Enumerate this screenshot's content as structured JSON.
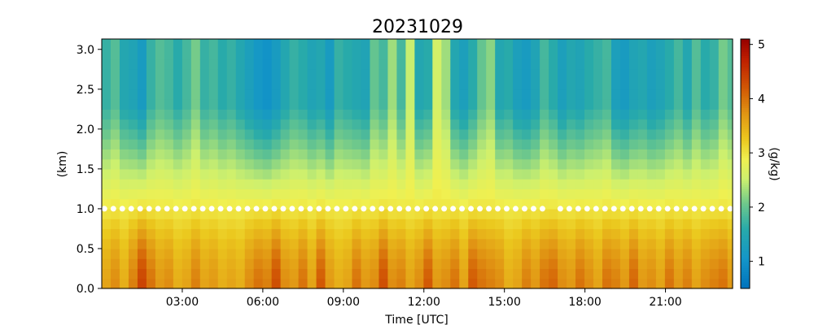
{
  "chart_data": {
    "type": "heatmap",
    "title": "20231029",
    "xlabel": "Time [UTC]",
    "ylabel": "(km)",
    "colorbar_label": "(g/kg)",
    "xlim_hours": [
      0.0,
      23.5
    ],
    "ylim_km": [
      0.0,
      3.13
    ],
    "x_ticks": [
      {
        "hours": 3,
        "label": "03:00"
      },
      {
        "hours": 6,
        "label": "06:00"
      },
      {
        "hours": 9,
        "label": "09:00"
      },
      {
        "hours": 12,
        "label": "12:00"
      },
      {
        "hours": 15,
        "label": "15:00"
      },
      {
        "hours": 18,
        "label": "18:00"
      },
      {
        "hours": 21,
        "label": "21:00"
      }
    ],
    "y_ticks": [
      {
        "value": 0.0,
        "label": "0.0"
      },
      {
        "value": 0.5,
        "label": "0.5"
      },
      {
        "value": 1.0,
        "label": "1.0"
      },
      {
        "value": 1.5,
        "label": "1.5"
      },
      {
        "value": 2.0,
        "label": "2.0"
      },
      {
        "value": 2.5,
        "label": "2.5"
      },
      {
        "value": 3.0,
        "label": "3.0"
      }
    ],
    "colorbar": {
      "vmin": 0.5,
      "vmax": 5.1,
      "ticks": [
        {
          "value": 1,
          "label": "1"
        },
        {
          "value": 2,
          "label": "2"
        },
        {
          "value": 3,
          "label": "3"
        },
        {
          "value": 4,
          "label": "4"
        },
        {
          "value": 5,
          "label": "5"
        }
      ],
      "colormap": "jet-like (blue-green-yellow-orange-dark red)"
    },
    "marker_line": {
      "height_km": 1.0,
      "color": "#ffffff",
      "style": "dots",
      "gap_hours": [
        16.5,
        17.0
      ]
    },
    "time_step_hours": 0.333,
    "surface_values_g_per_kg": [
      3.6,
      3.8,
      3.5,
      3.9,
      4.4,
      4.0,
      3.7,
      3.8,
      3.5,
      3.6,
      3.9,
      3.6,
      3.7,
      3.5,
      3.6,
      3.5,
      3.8,
      4.0,
      3.9,
      4.3,
      3.8,
      3.7,
      4.0,
      3.6,
      4.2,
      3.7,
      3.5,
      3.6,
      4.0,
      3.7,
      3.8,
      4.3,
      3.8,
      3.9,
      3.6,
      3.8,
      4.2,
      3.7,
      3.8,
      4.0,
      3.6,
      4.2,
      4.0,
      3.9,
      3.8,
      3.5,
      3.6,
      3.9,
      3.7,
      4.0,
      4.1,
      3.8,
      3.7,
      4.0,
      3.8,
      3.6,
      4.0,
      3.9,
      3.7,
      4.1,
      3.7,
      3.8,
      3.6,
      4.0,
      3.7,
      3.9,
      3.6,
      3.8,
      3.9,
      4.0,
      3.7,
      3.6
    ]
  }
}
